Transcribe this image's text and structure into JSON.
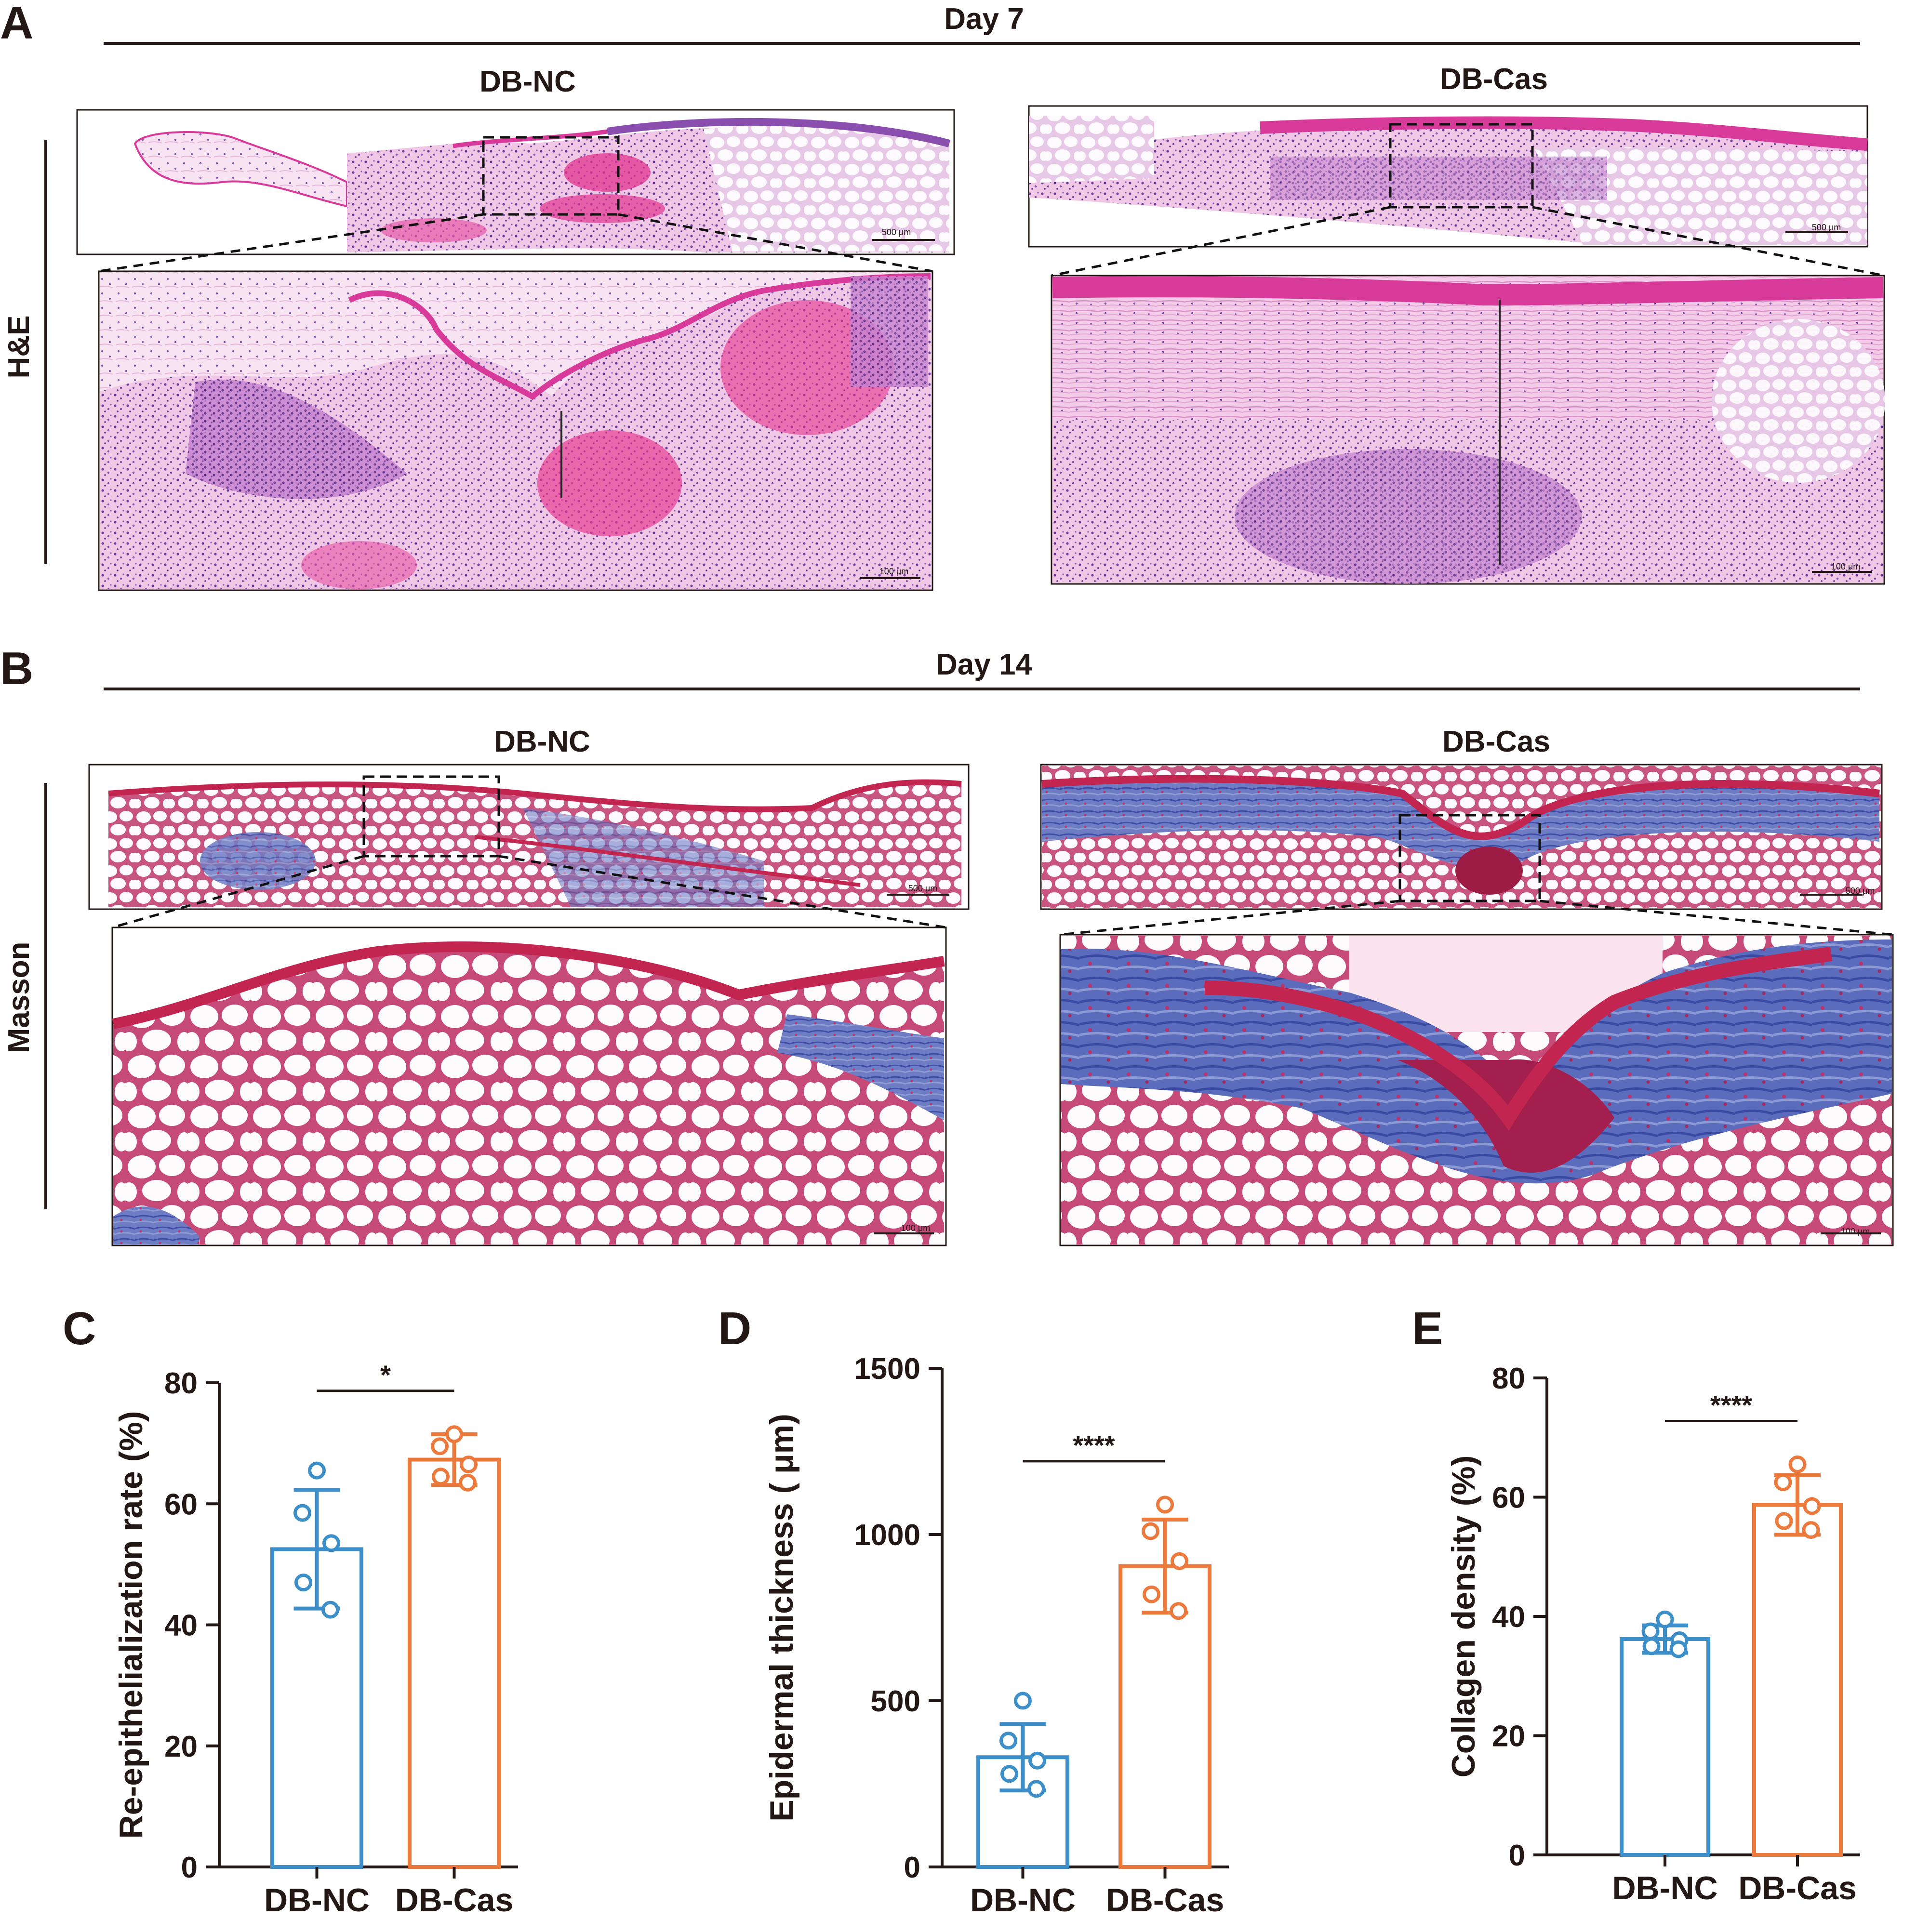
{
  "colors": {
    "ink": "#231815",
    "nc": "#3d8fc9",
    "cas": "#ec7a3c",
    "he_pink": "#e89bcd",
    "he_dark_pink": "#d83a9a",
    "he_purple": "#8a4fae",
    "masson_red": "#c2254f",
    "masson_blue": "#5566b8",
    "fat_white": "#fbf6fb"
  },
  "panelA": {
    "letter": "A",
    "day": "Day 7",
    "stain": "H&E",
    "left_title": "DB-NC",
    "right_title": "DB-Cas",
    "scale_overview": "500 μm",
    "scale_zoom": "100 μm"
  },
  "panelB": {
    "letter": "B",
    "day": "Day 14",
    "stain": "Masson",
    "left_title": "DB-NC",
    "right_title": "DB-Cas",
    "scale_overview": "500 μm",
    "scale_zoom": "100 μm"
  },
  "chart_data": [
    {
      "panel": "C",
      "type": "bar",
      "categories": [
        "DB-NC",
        "DB-Cas"
      ],
      "values": [
        52.5,
        67.3
      ],
      "sd": [
        9.8,
        4.2
      ],
      "points": [
        [
          65.5,
          58.5,
          53.5,
          47.0,
          42.5
        ],
        [
          71.5,
          69.5,
          66.5,
          64.5,
          63.5
        ]
      ],
      "ylabel": "Re-epithelialization rate (%)",
      "ylim": [
        0,
        80
      ],
      "yticks": [
        0,
        20,
        40,
        60,
        80
      ],
      "yticklabels": [
        "0",
        "20",
        "40",
        "60",
        "80"
      ],
      "significance": "*"
    },
    {
      "panel": "D",
      "type": "bar",
      "categories": [
        "DB-NC",
        "DB-Cas"
      ],
      "values": [
        330,
        905
      ],
      "sd": [
        100,
        140
      ],
      "points": [
        [
          500,
          380,
          320,
          280,
          235
        ],
        [
          1090,
          1010,
          920,
          820,
          770
        ]
      ],
      "ylabel": "Epidermal thickness ( μm)",
      "ylim": [
        0,
        1500
      ],
      "yticks": [
        0,
        500,
        1000,
        1500
      ],
      "yticklabels": [
        "0",
        "500",
        "1000",
        "1500"
      ],
      "significance": "****"
    },
    {
      "panel": "E",
      "type": "bar",
      "categories": [
        "DB-NC",
        "DB-Cas"
      ],
      "values": [
        36.2,
        58.7
      ],
      "sd": [
        2.3,
        5.0
      ],
      "points": [
        [
          39.5,
          37.5,
          36.0,
          35.0,
          34.5
        ],
        [
          65.5,
          62.5,
          58.5,
          56.0,
          54.5
        ]
      ],
      "ylabel": "Collagen density (%)",
      "ylim": [
        0,
        80
      ],
      "yticks": [
        0,
        20,
        40,
        60,
        80
      ],
      "yticklabels": [
        "0",
        "20",
        "40",
        "60",
        "80"
      ],
      "significance": "****"
    }
  ]
}
